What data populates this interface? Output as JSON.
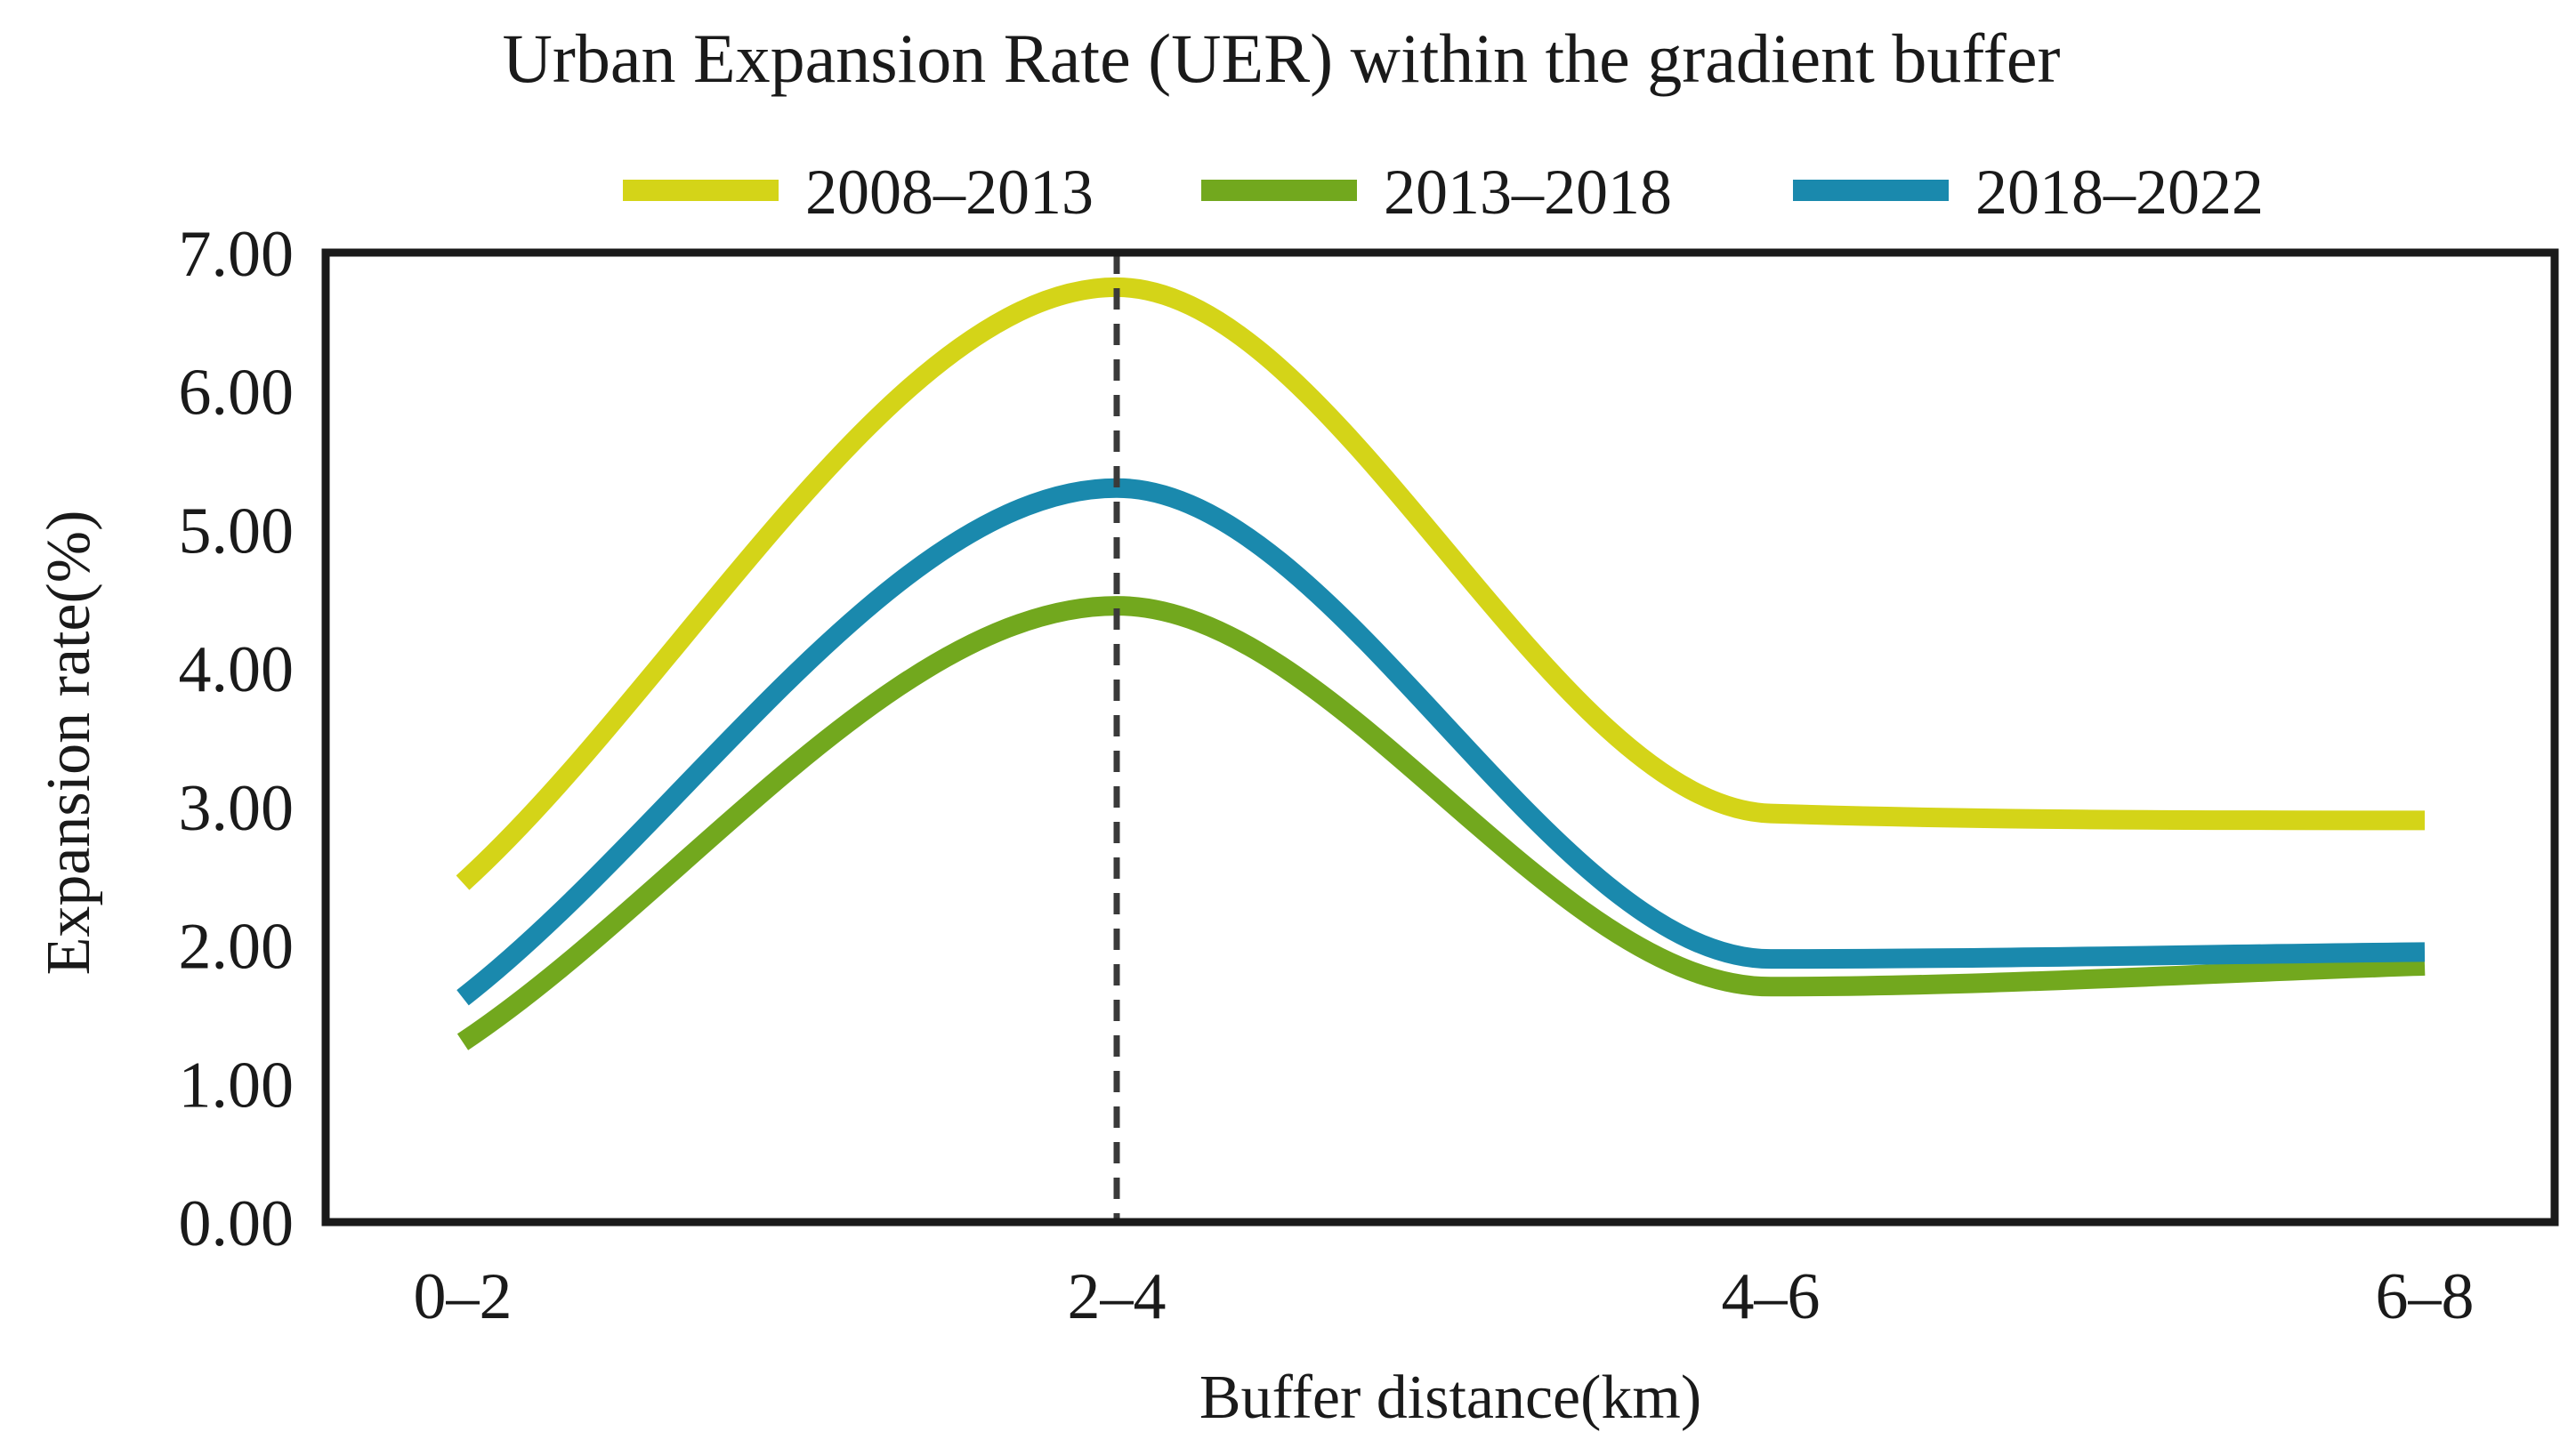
{
  "chart_data": {
    "type": "line",
    "title": "Urban Expansion Rate (UER) within the gradient buffer",
    "xlabel": "Buffer distance(km)",
    "ylabel": "Expansion rate(%)",
    "categories": [
      "0–2",
      "2–4",
      "4–6",
      "6–8"
    ],
    "ylim": [
      0,
      7
    ],
    "yticks": [
      "0.00",
      "1.00",
      "2.00",
      "3.00",
      "4.00",
      "5.00",
      "6.00",
      "7.00"
    ],
    "grid": false,
    "legend_position": "top",
    "reference_line": {
      "x": "2–4",
      "style": "dashed",
      "color": "#3a3a3a"
    },
    "series": [
      {
        "name": "2008–2013",
        "color": "#d4d418",
        "values": [
          2.45,
          6.75,
          2.95,
          2.9
        ]
      },
      {
        "name": "2013–2018",
        "color": "#72a81e",
        "values": [
          1.3,
          4.45,
          1.7,
          1.85
        ]
      },
      {
        "name": "2018–2022",
        "color": "#1a89ad",
        "values": [
          1.62,
          5.3,
          1.9,
          1.95
        ]
      }
    ]
  }
}
